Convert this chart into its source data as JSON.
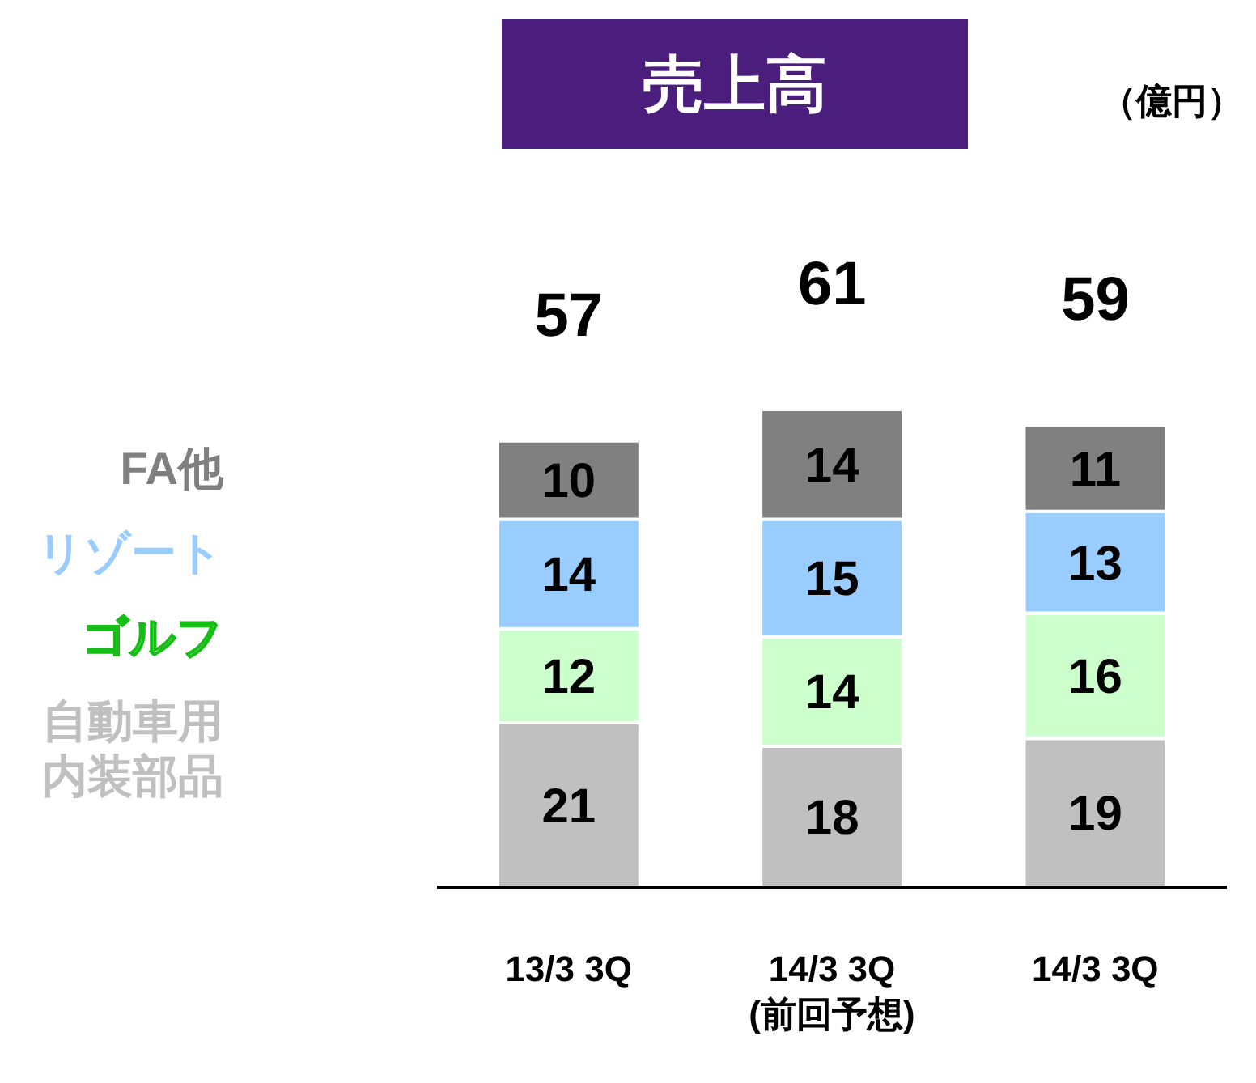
{
  "chart_data": {
    "type": "bar",
    "title": "売上高",
    "annotations": [
      "（億円）"
    ],
    "categories": [
      "13/3 3Q",
      "14/3 3Q (前回予想)",
      "14/3 3Q"
    ],
    "stacked": true,
    "data_labels": true,
    "legend": "left",
    "grid": false,
    "series": [
      {
        "name": "自動車用内装部品",
        "color": "#c0c0c0",
        "values": [
          21,
          18,
          19
        ]
      },
      {
        "name": "ゴルフ",
        "color": "#ccffcc",
        "values": [
          12,
          14,
          16
        ]
      },
      {
        "name": "リゾート",
        "color": "#99ccff",
        "values": [
          14,
          15,
          13
        ]
      },
      {
        "name": "FA他",
        "color": "#808080",
        "values": [
          10,
          14,
          11
        ]
      }
    ],
    "totals": [
      "57",
      "61",
      "59"
    ]
  }
}
